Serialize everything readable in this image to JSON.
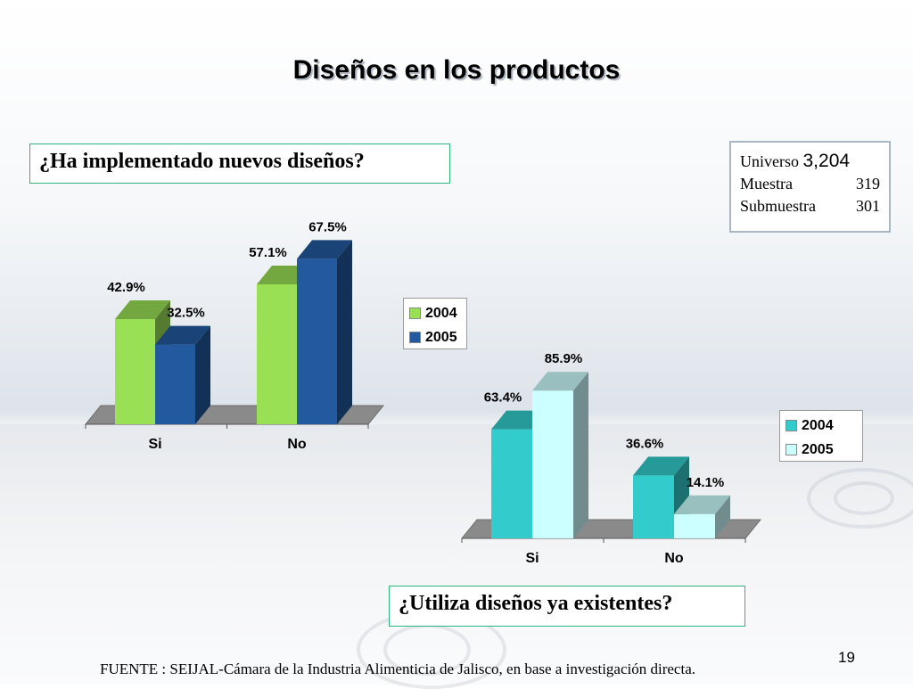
{
  "slide": {
    "title": "Diseños en los productos",
    "source": "FUENTE : SEIJAL-Cámara de la Industria Alimenticia de Jalisco,  en base a investigación directa.",
    "page_number": "19"
  },
  "questions": {
    "q1": "¿Ha implementado nuevos diseños?",
    "q2": "¿Utiliza diseños ya existentes?"
  },
  "sample": {
    "universe_label": "Universo",
    "universe_value": "3,204",
    "muestra_label": "Muestra",
    "muestra_value": "319",
    "submuestra_label": "Submuestra",
    "submuestra_value": "301"
  },
  "colors": {
    "chart1_2004": "#99e055",
    "chart1_2005": "#23599e",
    "chart2_2004": "#33cccc",
    "chart2_2005": "#ccffff"
  },
  "chart_data": [
    {
      "type": "bar",
      "title": "¿Ha implementado nuevos diseños?",
      "categories": [
        "Si",
        "No"
      ],
      "series": [
        {
          "name": "2004",
          "values": [
            42.9,
            57.1
          ],
          "labels": [
            "42.9%",
            "57.1%"
          ]
        },
        {
          "name": "2005",
          "values": [
            32.5,
            67.5
          ],
          "labels": [
            "32.5%",
            "67.5%"
          ]
        }
      ],
      "ylim": [
        0,
        70
      ],
      "legend": "right",
      "grid": false,
      "style": "3d-clustered-column"
    },
    {
      "type": "bar",
      "title": "¿Utiliza diseños ya existentes?",
      "categories": [
        "Si",
        "No"
      ],
      "series": [
        {
          "name": "2004",
          "values": [
            63.4,
            36.6
          ],
          "labels": [
            "63.4%",
            "36.6%"
          ]
        },
        {
          "name": "2005",
          "values": [
            85.9,
            14.1
          ],
          "labels": [
            "85.9%",
            "14.1%"
          ]
        }
      ],
      "ylim": [
        0,
        90
      ],
      "legend": "right",
      "grid": false,
      "style": "3d-clustered-column"
    }
  ]
}
